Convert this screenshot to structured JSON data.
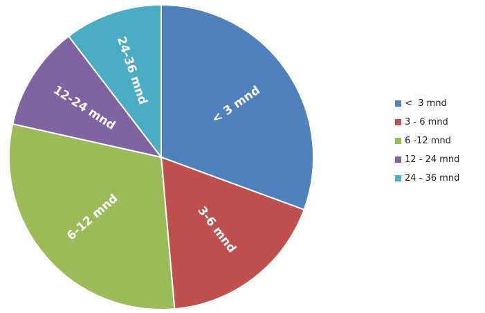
{
  "chart_data": {
    "type": "pie",
    "slice_labels": [
      "< 3 mnd",
      "3-6 mnd",
      "6-12 mnd",
      "12-24 mnd",
      "24-36 mnd"
    ],
    "legend": [
      "<  3 mnd",
      "3 - 6 mnd",
      "6 -12 mnd",
      "12 - 24 mnd",
      "24 - 36 mnd"
    ],
    "values": [
      30.6,
      18.0,
      29.9,
      11.1,
      10.4
    ],
    "colors": [
      "#4F81BD",
      "#C0504D",
      "#9BBB59",
      "#8064A2",
      "#4BACC6"
    ],
    "legend_position": "right",
    "start": "top",
    "direction": "clockwise"
  }
}
